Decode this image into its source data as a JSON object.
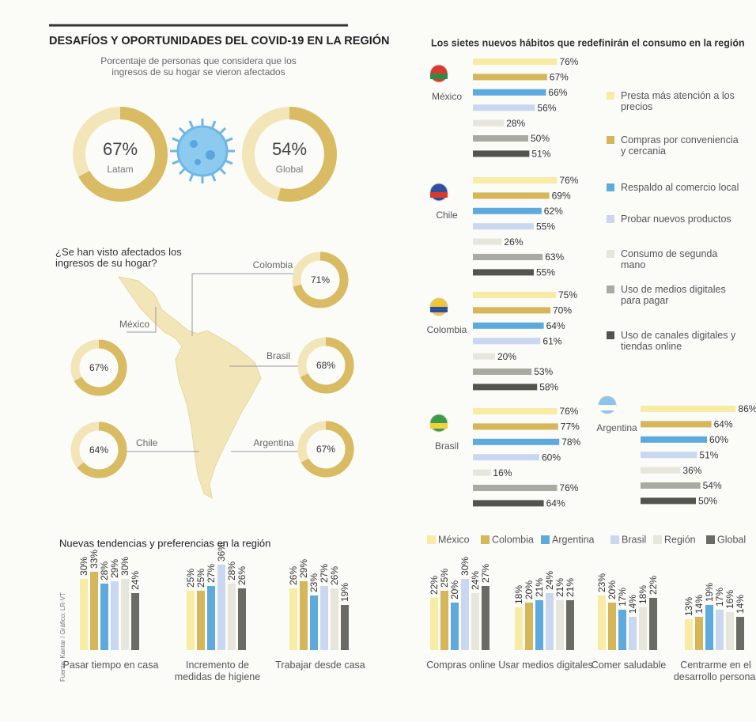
{
  "header": {
    "title": "DESAFÍOS Y OPORTUNIDADES DEL COVID-19 EN LA REGIÓN"
  },
  "source": "Fuente: Kantar / Gráfico: LR-VT",
  "chart_data": [
    {
      "type": "donut",
      "subtitle": "Porcentaje de personas que considera que los ingresos de su hogar se vieron afectados",
      "categories": [
        "Latam",
        "Global"
      ],
      "values": [
        67,
        54
      ],
      "value_labels": [
        "67%",
        "54%"
      ],
      "color": "#d8bb62",
      "track_color": "#f2e6b8"
    },
    {
      "type": "map-donut",
      "title": "¿Se han visto afectados los ingresos de su hogar?",
      "categories": [
        "Colombia",
        "México",
        "Brasil",
        "Chile",
        "Argentina"
      ],
      "values": [
        71,
        67,
        68,
        64,
        67
      ],
      "value_labels": [
        "71%",
        "67%",
        "68%",
        "64%",
        "67%"
      ],
      "color": "#d8bb62",
      "track_color": "#f2e6b8"
    },
    {
      "type": "hbar",
      "title": "Los sietes nuevos hábitos que redefinirán el consumo en la región",
      "categories": [
        "México",
        "Chile",
        "Colombia",
        "Brasil",
        "Argentina"
      ],
      "series": [
        {
          "name": "Presta más atención a los precios",
          "color": "#f8eba4",
          "values": [
            76,
            76,
            75,
            76,
            86
          ],
          "value_labels": [
            "76%",
            "76%",
            "75%",
            "76%",
            "86%"
          ]
        },
        {
          "name": "Compras por conveniencia y cercania",
          "color": "#d5b65b",
          "values": [
            67,
            69,
            70,
            77,
            64
          ],
          "value_labels": [
            "67%",
            "69%",
            "70%",
            "77%",
            "64%"
          ]
        },
        {
          "name": "Respaldo al comercio local",
          "color": "#5eaadd",
          "values": [
            66,
            62,
            64,
            78,
            60
          ],
          "value_labels": [
            "66%",
            "62%",
            "64%",
            "78%",
            "60%"
          ]
        },
        {
          "name": "Probar nuevos productos",
          "color": "#c9d8f0",
          "values": [
            56,
            55,
            61,
            60,
            51
          ],
          "value_labels": [
            "56%",
            "55%",
            "61%",
            "60%",
            "51%"
          ]
        },
        {
          "name": "Consumo de segunda mano",
          "color": "#e6e6dc",
          "values": [
            28,
            26,
            20,
            16,
            36
          ],
          "value_labels": [
            "28%",
            "26%",
            "20%",
            "16%",
            "36%"
          ]
        },
        {
          "name": "Uso de medios digitales para pagar",
          "color": "#a9aaa2",
          "values": [
            50,
            63,
            53,
            76,
            54
          ],
          "value_labels": [
            "50%",
            "63%",
            "53%",
            "76%",
            "54%"
          ]
        },
        {
          "name": "Uso de canales digitales y tiendas online",
          "color": "#54544f",
          "values": [
            51,
            55,
            58,
            64,
            50
          ],
          "value_labels": [
            "51%",
            "55%",
            "58%",
            "64%",
            "50%"
          ]
        }
      ]
    },
    {
      "type": "bar",
      "title": "Nuevas tendencias y preferencias en la región",
      "categories": [
        "Pasar tiempo en casa",
        "Incremento de medidas de higiene",
        "Trabajar desde casa",
        "Compras online",
        "Usar medios digitales",
        "Comer saludable",
        "Centrarme en el desarrollo personal"
      ],
      "series": [
        {
          "name": "México",
          "color": "#f8eba4",
          "values": [
            30,
            25,
            26,
            22,
            18,
            23,
            13
          ],
          "value_labels": [
            "30%",
            "25%",
            "26%",
            "22%",
            "18%",
            "23%",
            "13%"
          ]
        },
        {
          "name": "Colombia",
          "color": "#d5b65b",
          "values": [
            33,
            25,
            29,
            25,
            20,
            20,
            14
          ],
          "value_labels": [
            "33%",
            "25%",
            "29%",
            "25%",
            "20%",
            "20%",
            "14%"
          ]
        },
        {
          "name": "Argentina",
          "color": "#5eaadd",
          "values": [
            28,
            27,
            23,
            20,
            21,
            17,
            19
          ],
          "value_labels": [
            "28%",
            "27%",
            "23%",
            "20%",
            "21%",
            "17%",
            "19%"
          ]
        },
        {
          "name": "Brasil",
          "color": "#c9d8f0",
          "values": [
            29,
            36,
            27,
            30,
            24,
            14,
            17
          ],
          "value_labels": [
            "29%",
            "36%",
            "27%",
            "30%",
            "24%",
            "14%",
            "17%"
          ]
        },
        {
          "name": "Región",
          "color": "#e6e6dc",
          "values": [
            30,
            28,
            26,
            24,
            21,
            18,
            16
          ],
          "value_labels": [
            "30%",
            "28%",
            "26%",
            "24%",
            "21%",
            "18%",
            "16%"
          ]
        },
        {
          "name": "Global",
          "color": "#6b6b66",
          "values": [
            24,
            26,
            19,
            27,
            21,
            22,
            14
          ],
          "value_labels": [
            "24%",
            "26%",
            "19%",
            "27%",
            "21%",
            "22%",
            "14%"
          ]
        }
      ]
    }
  ]
}
